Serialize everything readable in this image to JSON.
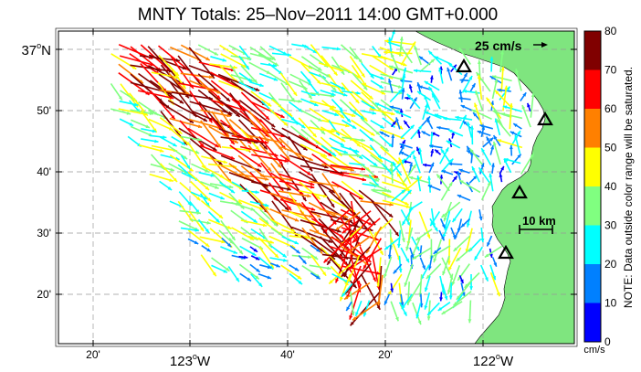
{
  "title": "MNTY Totals: 25–Nov–2011 14:00 GMT+0.000",
  "scale_arrow_label": "25 cm/s",
  "distance_scale_label": "10 km",
  "note": "NOTE: Data outside color range will be saturated.",
  "lat_labels": [
    {
      "deg": "37",
      "sup": "o",
      "suffix": "N",
      "big": true
    },
    {
      "text": "50'"
    },
    {
      "text": "40'"
    },
    {
      "text": "30'"
    },
    {
      "text": "20'"
    }
  ],
  "lon_labels": [
    {
      "text": "20'"
    },
    {
      "deg": "123",
      "sup": "o",
      "suffix": "W",
      "big": true
    },
    {
      "text": "40'"
    },
    {
      "text": "20'"
    },
    {
      "deg": "122",
      "sup": "o",
      "suffix": "W",
      "big": true
    }
  ],
  "colorbar": {
    "unit": "cm/s",
    "min": 0,
    "max": 80,
    "ticks": [
      "0",
      "10",
      "20",
      "30",
      "40",
      "50",
      "60",
      "70",
      "80"
    ],
    "colors": [
      "#0000ff",
      "#0080ff",
      "#00ffff",
      "#80ff80",
      "#ffff00",
      "#ff8000",
      "#ff0000",
      "#800000"
    ]
  },
  "colors": {
    "land": "#7fe57f",
    "grid": "#999999",
    "station_marker": "#000000"
  }
}
